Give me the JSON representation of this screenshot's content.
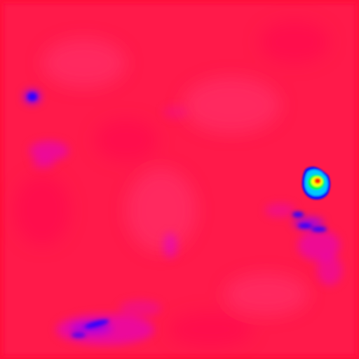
{
  "image": {
    "kind": "false-color heat map",
    "colors": {
      "background": "#ff1a4a",
      "edge": "#ff0a3a",
      "mottle_light": "#ff3a7a",
      "mottle_dark": "#ff0050",
      "cool_magenta": "#e000d0",
      "cool_violet": "#a000f0",
      "cool_blue": "#2a00ff",
      "hotspot_blue": "#1010ff",
      "hotspot_cyan": "#00c8ff",
      "hotspot_green": "#00ff40",
      "hotspot_yellow": "#ffff00",
      "hotspot_red": "#ff2000"
    }
  }
}
